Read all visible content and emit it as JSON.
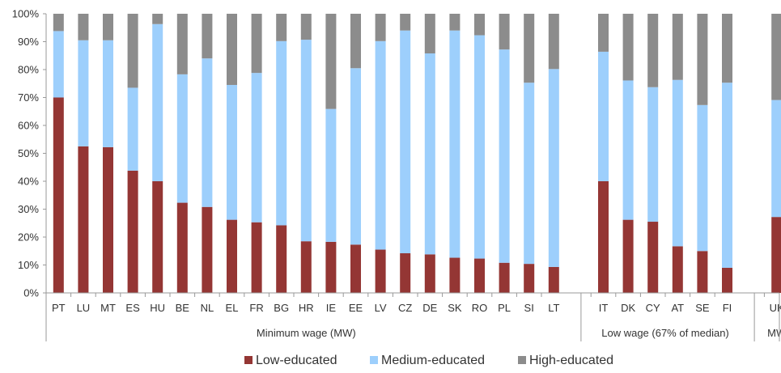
{
  "chart_data": {
    "type": "bar",
    "stacked": true,
    "percent_scale": true,
    "ylim": [
      0,
      100
    ],
    "y_ticks": [
      "0%",
      "10%",
      "20%",
      "30%",
      "40%",
      "50%",
      "60%",
      "70%",
      "80%",
      "90%",
      "100%"
    ],
    "grid": false,
    "legend_position": "bottom",
    "groups": [
      {
        "label": "Minimum wage (MW)",
        "categories": [
          "PT",
          "LU",
          "MT",
          "ES",
          "HU",
          "BE",
          "NL",
          "EL",
          "FR",
          "BG",
          "HR",
          "IE",
          "EE",
          "LV",
          "CZ",
          "DE",
          "SK",
          "RO",
          "PL",
          "SI",
          "LT"
        ],
        "low": [
          70.0,
          52.5,
          52.2,
          43.8,
          40.0,
          32.3,
          30.8,
          26.2,
          25.3,
          24.2,
          18.5,
          18.3,
          17.3,
          15.5,
          14.2,
          13.8,
          12.6,
          12.3,
          10.8,
          10.4,
          9.3
        ],
        "medium": [
          23.8,
          38.0,
          38.3,
          29.7,
          56.3,
          46.0,
          53.2,
          48.3,
          53.5,
          66.0,
          72.2,
          47.6,
          63.2,
          74.7,
          79.8,
          72.0,
          81.4,
          80.0,
          76.4,
          64.9,
          70.9
        ]
      },
      {
        "label": "Low wage (67% of median)",
        "categories": [
          "IT",
          "DK",
          "CY",
          "AT",
          "SE",
          "FI"
        ],
        "low": [
          40.0,
          26.2,
          25.5,
          16.7,
          15.0,
          9.0
        ],
        "medium": [
          46.4,
          49.9,
          48.2,
          59.6,
          52.3,
          66.3
        ]
      },
      {
        "label": "MW",
        "categories": [
          "UK"
        ],
        "low": [
          27.2
        ],
        "medium": [
          41.9
        ]
      }
    ],
    "series": [
      {
        "name": "Low-educated",
        "color": "#943634"
      },
      {
        "name": "Medium-educated",
        "color": "#9DCFFC"
      },
      {
        "name": "High-educated",
        "color": "#8C8C8C"
      }
    ]
  }
}
